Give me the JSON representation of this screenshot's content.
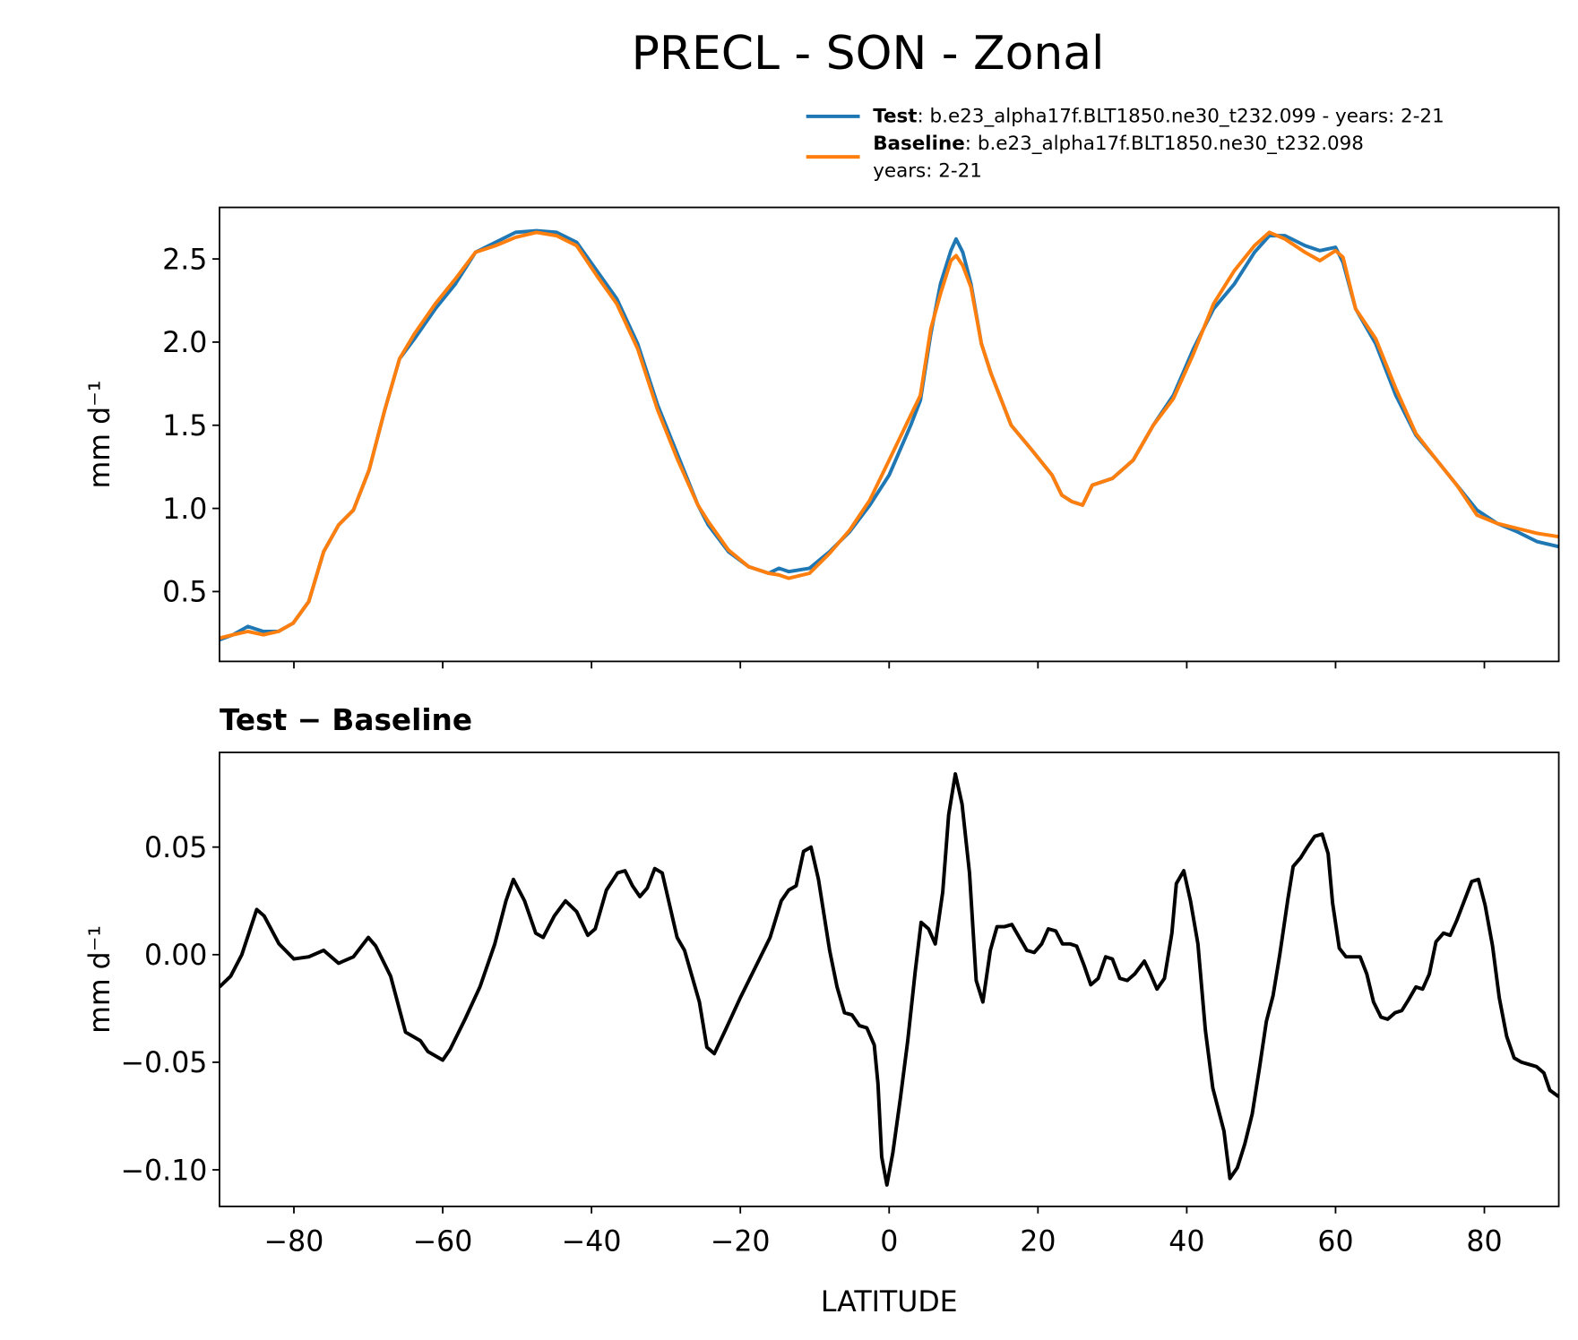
{
  "chart_data": [
    {
      "type": "line",
      "title": "PRECL - SON - Zonal",
      "ylabel": "mm d⁻¹",
      "xlim": [
        -90,
        90
      ],
      "ylim": [
        0.08,
        2.81
      ],
      "xticks": [
        -80,
        -60,
        -40,
        -20,
        0,
        20,
        40,
        60,
        80
      ],
      "xticklabels": false,
      "yticks": [
        0.5,
        {
          "value": 1.0,
          "label": "1.0"
        },
        1.5,
        {
          "value": 2.0,
          "label": "2.0"
        },
        2.5
      ],
      "legend": "upper right",
      "x": [
        -90,
        -88.2,
        -86.2,
        -84.1,
        -82.1,
        -80.1,
        -78,
        -76,
        -74,
        -72,
        -69.9,
        -67.8,
        -65.8,
        -63.8,
        -61,
        -58.3,
        -55.6,
        -52.9,
        -50.2,
        -47.4,
        -44.7,
        -42,
        -39.3,
        -36.6,
        -33.8,
        -31.1,
        -28.4,
        -25.7,
        -24.3,
        -21.6,
        -18.9,
        -16.2,
        -14.8,
        -13.5,
        -10.7,
        -8,
        -5.3,
        -2.6,
        0,
        2.9,
        4.2,
        5.6,
        6.9,
        8.3,
        9,
        9.9,
        11,
        12.4,
        13.7,
        16.4,
        19.2,
        21.9,
        23.2,
        24.6,
        26,
        27.3,
        30,
        32.8,
        35.5,
        38.2,
        40.9,
        43.6,
        46.4,
        49.1,
        51.1,
        53.2,
        55.9,
        57.9,
        60,
        61,
        62.7,
        65.4,
        68.1,
        70.8,
        73.6,
        76.3,
        79,
        81.7,
        84.4,
        87.1,
        90
      ],
      "series": [
        {
          "name": "Test",
          "description": [
            ": b.e23_alpha17f.BLT1850.ne30_t232.099 - years: 2-21"
          ],
          "color": "#1f77b4",
          "values": [
            0.21,
            0.24,
            0.29,
            0.26,
            0.26,
            0.31,
            0.44,
            0.74,
            0.9,
            0.99,
            1.23,
            1.59,
            1.9,
            2.02,
            2.2,
            2.35,
            2.54,
            2.6,
            2.66,
            2.67,
            2.66,
            2.6,
            2.43,
            2.26,
            1.99,
            1.62,
            1.32,
            1.02,
            0.9,
            0.74,
            0.65,
            0.61,
            0.64,
            0.62,
            0.64,
            0.74,
            0.86,
            1.02,
            1.2,
            1.5,
            1.65,
            2.05,
            2.35,
            2.55,
            2.62,
            2.54,
            2.35,
            1.99,
            1.81,
            1.5,
            1.35,
            1.2,
            1.08,
            1.04,
            1.02,
            1.14,
            1.18,
            1.29,
            1.5,
            1.68,
            1.96,
            2.2,
            2.35,
            2.54,
            2.64,
            2.64,
            2.58,
            2.55,
            2.57,
            2.48,
            2.2,
            1.99,
            1.68,
            1.44,
            1.29,
            1.14,
            0.99,
            0.91,
            0.86,
            0.8,
            0.77
          ]
        },
        {
          "name": "Baseline",
          "description": [
            ": b.e23_alpha17f.BLT1850.ne30_t232.098",
            "years: 2-21"
          ],
          "color": "#ff7f0e",
          "values": [
            0.22,
            0.24,
            0.26,
            0.24,
            0.26,
            0.31,
            0.44,
            0.74,
            0.9,
            0.99,
            1.23,
            1.59,
            1.9,
            2.05,
            2.23,
            2.38,
            2.54,
            2.58,
            2.63,
            2.66,
            2.64,
            2.58,
            2.4,
            2.23,
            1.96,
            1.59,
            1.29,
            1.02,
            0.92,
            0.75,
            0.65,
            0.61,
            0.6,
            0.58,
            0.61,
            0.73,
            0.87,
            1.05,
            1.29,
            1.56,
            1.68,
            2.08,
            2.29,
            2.49,
            2.52,
            2.46,
            2.33,
            1.99,
            1.81,
            1.5,
            1.35,
            1.2,
            1.08,
            1.04,
            1.02,
            1.14,
            1.18,
            1.29,
            1.5,
            1.66,
            1.93,
            2.23,
            2.43,
            2.58,
            2.66,
            2.62,
            2.54,
            2.49,
            2.55,
            2.51,
            2.2,
            2.02,
            1.72,
            1.45,
            1.29,
            1.14,
            0.96,
            0.91,
            0.88,
            0.85,
            0.83
          ]
        }
      ]
    },
    {
      "type": "line",
      "title": "Test − Baseline",
      "xlabel": "LATITUDE",
      "ylabel": "mm d⁻¹",
      "xlim": [
        -90,
        90
      ],
      "ylim": [
        -0.117,
        0.094
      ],
      "xticks": [
        {
          "value": -80,
          "label": "−80"
        },
        {
          "value": -60,
          "label": "−60"
        },
        {
          "value": -40,
          "label": "−40"
        },
        {
          "value": -20,
          "label": "−20"
        },
        0,
        20,
        40,
        60,
        80
      ],
      "yticks": [
        {
          "value": -0.1,
          "label": "−0.10"
        },
        {
          "value": -0.05,
          "label": "−0.05"
        },
        {
          "value": 0,
          "label": "0.00"
        },
        0.05
      ],
      "color": "#000000",
      "x": [
        -90,
        -88.5,
        -87,
        -85,
        -84,
        -82,
        -80,
        -78,
        -76,
        -74,
        -72,
        -70,
        -69,
        -67,
        -65,
        -63,
        -62,
        -60,
        -59,
        -57,
        -55,
        -53,
        -51.5,
        -50.5,
        -49,
        -47.5,
        -46.5,
        -45,
        -43.5,
        -42,
        -40.5,
        -39.5,
        -38,
        -36.5,
        -35.5,
        -34.5,
        -33.5,
        -32.5,
        -31.5,
        -30.5,
        -28.5,
        -27.5,
        -26.5,
        -25.5,
        -24.5,
        -23.5,
        -22,
        -20,
        -18,
        -16,
        -14.5,
        -13.5,
        -12.5,
        -11.5,
        -10.5,
        -9.5,
        -8,
        -7,
        -6,
        -5,
        -4,
        -3,
        -2,
        -1.5,
        -1,
        -0.3,
        0.5,
        1.5,
        2.5,
        3.5,
        4.3,
        5.3,
        6.2,
        7.2,
        8,
        8.9,
        9.8,
        10.8,
        11.7,
        12.6,
        13.6,
        14.5,
        15.5,
        16.5,
        17.5,
        18.5,
        19.5,
        20.5,
        21.4,
        22.4,
        23.3,
        24.3,
        25.2,
        26.2,
        27.1,
        28.1,
        29.1,
        30,
        31,
        32,
        33,
        34.3,
        35,
        36,
        37,
        38,
        38.6,
        39.6,
        40.5,
        41.5,
        42.5,
        43.5,
        45,
        45.8,
        46.8,
        47.8,
        48.8,
        49.8,
        50.7,
        51.6,
        52.5,
        53.6,
        54.3,
        55.3,
        56.2,
        57.2,
        58.2,
        59,
        59.6,
        60.5,
        61.4,
        62.3,
        63.3,
        64.2,
        65.1,
        66.1,
        67,
        68,
        68.9,
        69.8,
        70.8,
        71.7,
        72.6,
        73.5,
        74.5,
        75.4,
        76.3,
        77.3,
        78.3,
        79.2,
        80.1,
        81.1,
        82,
        83,
        84,
        85,
        86,
        87,
        88,
        88.8,
        90
      ],
      "values": [
        -0.015,
        -0.01,
        0,
        0.021,
        0.018,
        0.005,
        -0.002,
        -0.001,
        0.002,
        -0.004,
        -0.001,
        0.008,
        0.004,
        -0.01,
        -0.036,
        -0.04,
        -0.045,
        -0.049,
        -0.044,
        -0.03,
        -0.015,
        0.005,
        0.025,
        0.035,
        0.025,
        0.01,
        0.008,
        0.018,
        0.025,
        0.02,
        0.009,
        0.012,
        0.03,
        0.038,
        0.039,
        0.032,
        0.027,
        0.031,
        0.04,
        0.038,
        0.008,
        0.002,
        -0.01,
        -0.022,
        -0.043,
        -0.046,
        -0.035,
        -0.02,
        -0.006,
        0.008,
        0.025,
        0.03,
        0.032,
        0.048,
        0.05,
        0.035,
        0.002,
        -0.015,
        -0.027,
        -0.028,
        -0.033,
        -0.034,
        -0.042,
        -0.06,
        -0.094,
        -0.107,
        -0.092,
        -0.067,
        -0.04,
        -0.008,
        0.015,
        0.012,
        0.005,
        0.029,
        0.065,
        0.084,
        0.07,
        0.038,
        -0.012,
        -0.022,
        0.002,
        0.013,
        0.013,
        0.014,
        0.008,
        0.002,
        0.001,
        0.005,
        0.012,
        0.011,
        0.005,
        0.005,
        0.004,
        -0.005,
        -0.014,
        -0.011,
        -0.001,
        -0.002,
        -0.011,
        -0.012,
        -0.009,
        -0.003,
        -0.008,
        -0.016,
        -0.011,
        0.01,
        0.033,
        0.039,
        0.025,
        0.005,
        -0.035,
        -0.062,
        -0.082,
        -0.104,
        -0.099,
        -0.088,
        -0.074,
        -0.052,
        -0.031,
        -0.019,
        0,
        0.026,
        0.041,
        0.045,
        0.05,
        0.055,
        0.056,
        0.047,
        0.024,
        0.003,
        -0.001,
        -0.001,
        -0.001,
        -0.009,
        -0.022,
        -0.029,
        -0.03,
        -0.027,
        -0.026,
        -0.021,
        -0.015,
        -0.016,
        -0.009,
        0.006,
        0.01,
        0.009,
        0.016,
        0.025,
        0.034,
        0.035,
        0.023,
        0.004,
        -0.02,
        -0.038,
        -0.048,
        -0.05,
        -0.051,
        -0.052,
        -0.055,
        -0.063,
        -0.066
      ]
    }
  ]
}
